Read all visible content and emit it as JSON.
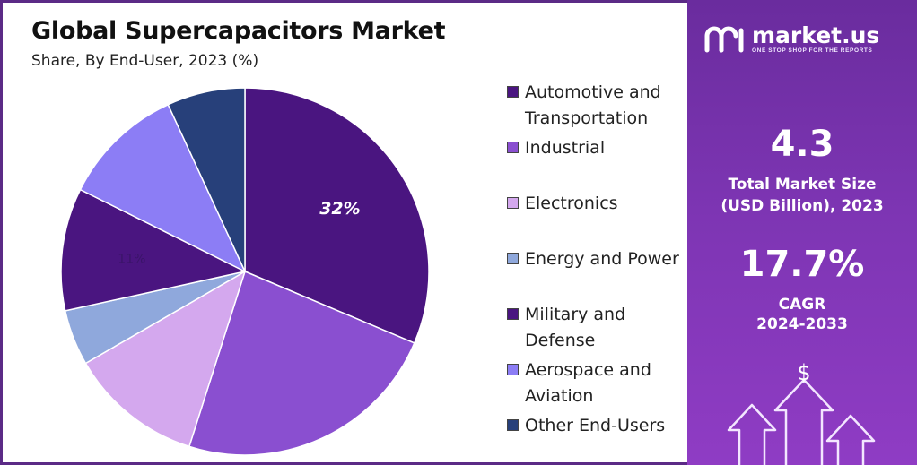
{
  "title": "Global Supercapacitors Market",
  "subtitle": "Share, By End-User, 2023 (%)",
  "chart_data": {
    "type": "pie",
    "title": "Global Supercapacitors Market",
    "subtitle": "Share, By End-User, 2023 (%)",
    "categories": [
      "Automotive and Transportation",
      "Industrial",
      "Electronics",
      "Energy and Power",
      "Military and Defense",
      "Aerospace and Aviation",
      "Other End-Users"
    ],
    "values": [
      32,
      24,
      12,
      5,
      11,
      11,
      7
    ],
    "data_labels": [
      "32%",
      "",
      "",
      "",
      "11%",
      "",
      ""
    ],
    "colors": [
      "#4a1580",
      "#8a4fd0",
      "#d4a8ee",
      "#8fa8dc",
      "#4a1580",
      "#8c7df5",
      "#27407a"
    ],
    "start_angle_deg": 0,
    "direction": "clockwise",
    "legend_position": "right"
  },
  "legend": {
    "items": [
      {
        "label": "Automotive and Transportation",
        "color": "#4a1580"
      },
      {
        "label": "Industrial",
        "color": "#8a4fd0"
      },
      {
        "label": "Electronics",
        "color": "#d4a8ee"
      },
      {
        "label": "Energy and Power",
        "color": "#8fa8dc"
      },
      {
        "label": "Military and Defense",
        "color": "#4a1580"
      },
      {
        "label": "Aerospace and Aviation",
        "color": "#8c7df5"
      },
      {
        "label": "Other End-Users",
        "color": "#27407a"
      }
    ]
  },
  "brand": {
    "name": "market.us",
    "tagline": "ONE STOP SHOP FOR THE REPORTS"
  },
  "stats": {
    "market_size_value": "4.3",
    "market_size_label": "Total Market Size (USD Billion), 2023",
    "cagr_value": "17.7%",
    "cagr_label": "CAGR",
    "cagr_period": "2024-2033",
    "currency_symbol": "$"
  },
  "icons": {
    "logo": "market-us-logo-icon",
    "arrows": "growth-arrows-icon"
  }
}
